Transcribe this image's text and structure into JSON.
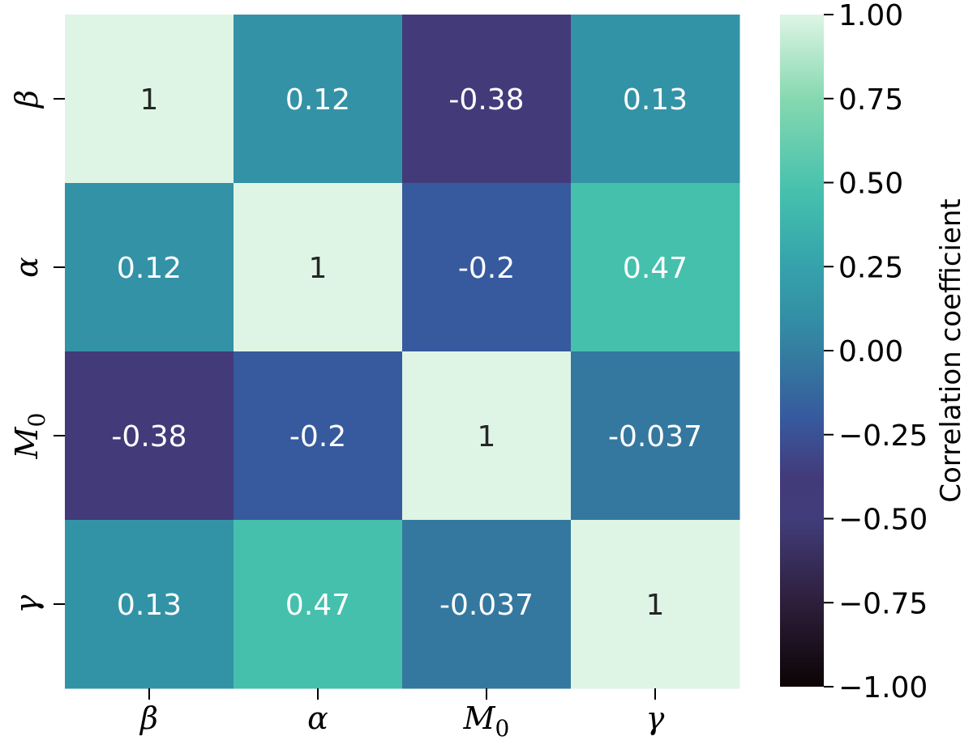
{
  "chart_data": {
    "type": "heatmap",
    "row_labels": [
      {
        "base": "β",
        "sub": ""
      },
      {
        "base": "α",
        "sub": ""
      },
      {
        "base": "M",
        "sub": "0"
      },
      {
        "base": "γ",
        "sub": ""
      }
    ],
    "col_labels": [
      {
        "base": "β",
        "sub": ""
      },
      {
        "base": "α",
        "sub": ""
      },
      {
        "base": "M",
        "sub": "0"
      },
      {
        "base": "γ",
        "sub": ""
      }
    ],
    "values": [
      [
        1,
        0.12,
        -0.38,
        0.13
      ],
      [
        0.12,
        1,
        -0.2,
        0.47
      ],
      [
        -0.38,
        -0.2,
        1,
        -0.037
      ],
      [
        0.13,
        0.47,
        -0.037,
        1
      ]
    ],
    "annotations": [
      [
        "1",
        "0.12",
        "-0.38",
        "0.13"
      ],
      [
        "0.12",
        "1",
        "-0.2",
        "0.47"
      ],
      [
        "-0.38",
        "-0.2",
        "1",
        "-0.037"
      ],
      [
        "0.13",
        "0.47",
        "-0.037",
        "1"
      ]
    ],
    "colorbar": {
      "label": "Correlation coefficient",
      "range": [
        -1,
        1
      ],
      "ticks": [
        1,
        0.75,
        0.5,
        0.25,
        0,
        -0.25,
        -0.5,
        -0.75,
        -1
      ],
      "tick_labels": [
        "1.00",
        "0.75",
        "0.50",
        "0.25",
        "0.00",
        "−0.25",
        "−0.50",
        "−0.75",
        "−1.00"
      ]
    },
    "colormap": "mako",
    "colormap_stops": [
      {
        "v": -1.0,
        "color": "#0b0405"
      },
      {
        "v": -0.75,
        "color": "#2e1e3b"
      },
      {
        "v": -0.5,
        "color": "#413d7b"
      },
      {
        "v": -0.38,
        "color": "#433a7a"
      },
      {
        "v": -0.2,
        "color": "#375a9e"
      },
      {
        "v": -0.037,
        "color": "#34789f"
      },
      {
        "v": 0.12,
        "color": "#3392a6"
      },
      {
        "v": 0.25,
        "color": "#35a2ab"
      },
      {
        "v": 0.47,
        "color": "#45c0ad"
      },
      {
        "v": 0.75,
        "color": "#86d8b0"
      },
      {
        "v": 1.0,
        "color": "#def5e5"
      }
    ],
    "dark_text_color": "#262626",
    "light_text_color": "#ffffff"
  }
}
